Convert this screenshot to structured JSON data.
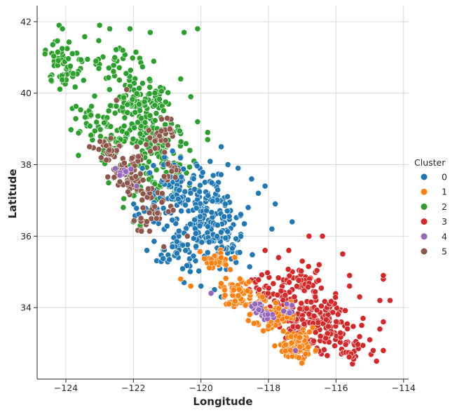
{
  "chart_data": {
    "type": "scatter",
    "title": "",
    "xlabel": "Longitude",
    "ylabel": "Latitude",
    "xlim": [
      -124.85,
      -113.85
    ],
    "ylim": [
      32.0,
      42.45
    ],
    "x_ticks": [
      -124,
      -122,
      -120,
      -118,
      -116,
      -114
    ],
    "y_ticks": [
      34,
      36,
      38,
      40,
      42
    ],
    "x_tick_labels": [
      "−124",
      "−122",
      "−120",
      "−118",
      "−116",
      "−114"
    ],
    "y_tick_labels": [
      "34",
      "36",
      "38",
      "40",
      "42"
    ],
    "grid": true,
    "legend": {
      "title": "Cluster",
      "placement": "right"
    },
    "series": [
      {
        "name": "0",
        "color": "#1f77b4",
        "centers": [
          [
            -120.7,
            37.2
          ],
          [
            -120.0,
            36.6
          ],
          [
            -119.7,
            36.9
          ],
          [
            -119.3,
            36.4
          ],
          [
            -120.3,
            36.2
          ],
          [
            -121.6,
            36.8
          ],
          [
            -120.2,
            35.5
          ],
          [
            -119.6,
            36.1
          ],
          [
            -120.8,
            35.6
          ],
          [
            -120.9,
            37.7
          ],
          [
            -119.1,
            35.7
          ],
          [
            -119.8,
            37.5
          ]
        ],
        "n": 320,
        "spread": [
          0.55,
          0.45
        ],
        "extras": [
          [
            -118.5,
            37.6
          ],
          [
            -118.3,
            37.2
          ],
          [
            -117.8,
            36.9
          ],
          [
            -117.3,
            36.4
          ],
          [
            -117.9,
            36.2
          ],
          [
            -119.4,
            38.5
          ],
          [
            -118.9,
            37.9
          ],
          [
            -119.2,
            38.0
          ],
          [
            -118.6,
            36.8
          ],
          [
            -118.1,
            37.4
          ],
          [
            -120.5,
            34.7
          ],
          [
            -120.0,
            34.6
          ],
          [
            -119.6,
            34.5
          ],
          [
            -118.8,
            34.4
          ],
          [
            -119.4,
            34.3
          ],
          [
            -121.4,
            36.4
          ],
          [
            -121.6,
            35.6
          ]
        ]
      },
      {
        "name": "1",
        "color": "#ff7f0e",
        "centers": [
          [
            -117.3,
            33.0
          ],
          [
            -117.1,
            32.8
          ],
          [
            -117.6,
            33.8
          ],
          [
            -118.3,
            34.0
          ],
          [
            -117.9,
            33.7
          ],
          [
            -118.9,
            34.3
          ],
          [
            -119.1,
            34.5
          ],
          [
            -119.5,
            35.3
          ],
          [
            -117.0,
            33.1
          ]
        ],
        "n": 210,
        "spread": [
          0.35,
          0.3
        ],
        "extras": [
          [
            -120.6,
            34.8
          ],
          [
            -120.3,
            34.6
          ],
          [
            -119.4,
            35.4
          ],
          [
            -119.0,
            35.4
          ],
          [
            -116.6,
            32.8
          ],
          [
            -116.9,
            32.7
          ],
          [
            -117.1,
            32.6
          ]
        ]
      },
      {
        "name": "2",
        "color": "#2ca02c",
        "centers": [
          [
            -123.8,
            41.0
          ],
          [
            -122.4,
            40.8
          ],
          [
            -121.6,
            40.0
          ],
          [
            -121.6,
            39.6
          ],
          [
            -121.2,
            39.0
          ],
          [
            -122.0,
            39.0
          ],
          [
            -121.5,
            38.6
          ],
          [
            -120.9,
            38.3
          ],
          [
            -122.7,
            38.5
          ],
          [
            -123.3,
            39.3
          ],
          [
            -121.9,
            37.5
          ],
          [
            -120.9,
            37.6
          ],
          [
            -122.2,
            39.8
          ],
          [
            -124.0,
            40.6
          ]
        ],
        "n": 430,
        "spread": [
          0.6,
          0.45
        ],
        "extras": [
          [
            -124.2,
            41.9
          ],
          [
            -124.1,
            41.8
          ],
          [
            -123.0,
            41.9
          ],
          [
            -122.7,
            41.8
          ],
          [
            -122.1,
            41.8
          ],
          [
            -121.5,
            41.7
          ],
          [
            -120.5,
            41.7
          ],
          [
            -120.1,
            41.8
          ],
          [
            -120.6,
            40.4
          ],
          [
            -120.3,
            39.9
          ],
          [
            -120.1,
            39.2
          ],
          [
            -119.8,
            38.7
          ],
          [
            -119.8,
            38.9
          ],
          [
            -122.0,
            36.4
          ],
          [
            -121.8,
            36.3
          ],
          [
            -122.3,
            36.8
          ]
        ]
      },
      {
        "name": "3",
        "color": "#d62728",
        "centers": [
          [
            -117.0,
            34.0
          ],
          [
            -116.5,
            33.7
          ],
          [
            -117.2,
            33.4
          ],
          [
            -116.3,
            33.6
          ],
          [
            -116.0,
            33.1
          ],
          [
            -117.3,
            34.5
          ],
          [
            -116.8,
            34.7
          ],
          [
            -118.2,
            34.6
          ],
          [
            -117.6,
            34.2
          ],
          [
            -116.9,
            33.0
          ],
          [
            -115.6,
            32.9
          ],
          [
            -116.2,
            33.9
          ]
        ],
        "n": 300,
        "spread": [
          0.45,
          0.4
        ],
        "extras": [
          [
            -115.6,
            34.9
          ],
          [
            -115.8,
            35.5
          ],
          [
            -116.4,
            36.0
          ],
          [
            -114.6,
            34.8
          ],
          [
            -114.7,
            34.2
          ],
          [
            -114.4,
            34.2
          ],
          [
            -114.6,
            33.6
          ],
          [
            -114.7,
            33.4
          ],
          [
            -114.6,
            32.8
          ],
          [
            -114.9,
            32.8
          ],
          [
            -115.0,
            33.1
          ],
          [
            -115.2,
            33.7
          ],
          [
            -115.3,
            34.3
          ],
          [
            -115.6,
            34.6
          ],
          [
            -116.5,
            35.2
          ],
          [
            -117.0,
            35.3
          ],
          [
            -117.4,
            35.6
          ],
          [
            -118.1,
            35.6
          ],
          [
            -117.7,
            35.4
          ],
          [
            -116.8,
            36.0
          ],
          [
            -114.6,
            34.9
          ],
          [
            -114.8,
            32.5
          ]
        ]
      },
      {
        "name": "4",
        "color": "#9467bd",
        "centers": [
          [
            -118.3,
            34.05
          ],
          [
            -118.2,
            33.9
          ],
          [
            -122.3,
            37.8
          ],
          [
            -117.4,
            33.95
          ],
          [
            -118.0,
            33.8
          ]
        ],
        "n": 40,
        "spread": [
          0.2,
          0.15
        ],
        "extras": [
          [
            -121.9,
            37.4
          ],
          [
            -122.4,
            37.7
          ],
          [
            -118.4,
            34.1
          ],
          [
            -117.2,
            32.8
          ],
          [
            -119.7,
            34.4
          ]
        ]
      },
      {
        "name": "5",
        "color": "#8c564b",
        "centers": [
          [
            -122.3,
            37.8
          ],
          [
            -122.0,
            37.4
          ],
          [
            -122.2,
            37.6
          ],
          [
            -121.3,
            38.6
          ],
          [
            -121.0,
            38.9
          ],
          [
            -122.6,
            38.3
          ],
          [
            -121.9,
            38.1
          ],
          [
            -121.6,
            37.2
          ],
          [
            -121.2,
            36.7
          ],
          [
            -121.7,
            36.4
          ],
          [
            -120.9,
            37.8
          ],
          [
            -122.9,
            38.4
          ]
        ],
        "n": 160,
        "spread": [
          0.3,
          0.25
        ],
        "extras": [
          [
            -121.0,
            39.3
          ],
          [
            -122.5,
            39.8
          ],
          [
            -122.2,
            40.1
          ],
          [
            -120.4,
            36.0
          ],
          [
            -121.1,
            35.7
          ],
          [
            -121.9,
            38.5
          ],
          [
            -123.3,
            38.5
          ]
        ]
      }
    ]
  }
}
